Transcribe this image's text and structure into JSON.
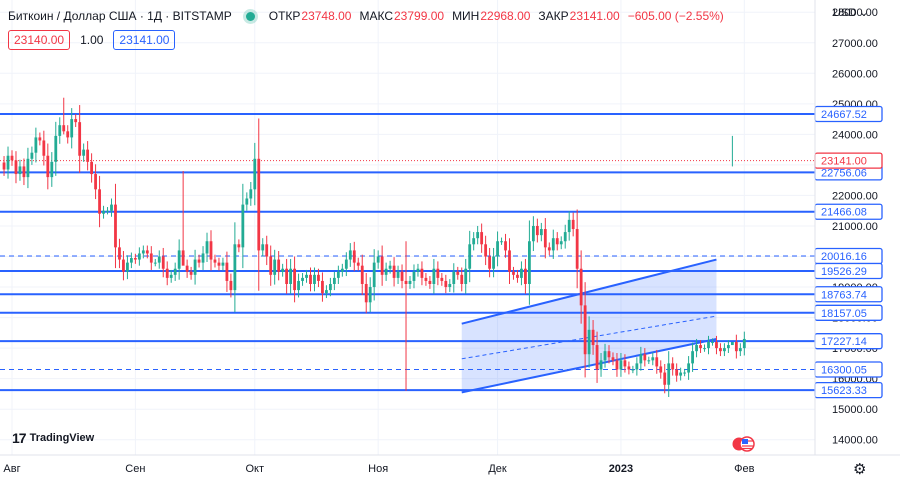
{
  "header": {
    "symbol": "Биткоин / Доллар США · 1Д · BITSTAMP",
    "open_label": "ОТКР",
    "open_value": "23748.00",
    "high_label": "МАКС",
    "high_value": "23799.00",
    "low_label": "МИН",
    "low_value": "22968.00",
    "close_label": "ЗАКР",
    "close_value": "23141.00",
    "change": "−605.00 (−2.55%)",
    "bid": "23140.00",
    "spread": "1.00",
    "ask": "23141.00"
  },
  "currency_label": "USD",
  "logo_text": "TradingView",
  "icons": {
    "status": "market-status-dot-icon",
    "logo": "tradingview-logo-icon",
    "flag": "us-flag-icon",
    "settings": "gear-icon",
    "dropdown": "chevron-down-icon"
  },
  "colors": {
    "up": "#22ab94",
    "down": "#f23645",
    "level_line": "#2962ff",
    "last_price": "#f23645",
    "channel_fill": "#2962ff"
  },
  "chart_data": {
    "type": "candlestick",
    "ylim": [
      13500,
      28400
    ],
    "y_ticks": [
      14000,
      15000,
      16000,
      17000,
      18000,
      19000,
      20000,
      21000,
      22000,
      23000,
      24000,
      25000,
      26000,
      27000,
      28000
    ],
    "x_labels": [
      {
        "label": "Авг",
        "date": "2022-08-01"
      },
      {
        "label": "Сен",
        "date": "2022-09-01"
      },
      {
        "label": "Окт",
        "date": "2022-10-01"
      },
      {
        "label": "Ноя",
        "date": "2022-11-01"
      },
      {
        "label": "Дек",
        "date": "2022-12-01"
      },
      {
        "label": "2023",
        "date": "2023-01-01"
      },
      {
        "label": "Фев",
        "date": "2023-02-01"
      }
    ],
    "xlim": [
      "2022-08-01",
      "2023-02-01"
    ],
    "last_price": 23141.0,
    "horizontal_levels": [
      {
        "value": 24667.52,
        "label": "24667.52",
        "style": "solid"
      },
      {
        "value": 22756.06,
        "label": "22756.06",
        "style": "solid"
      },
      {
        "value": 21466.08,
        "label": "21466.08",
        "style": "solid"
      },
      {
        "value": 20016.16,
        "label": "20016.16",
        "style": "dashed"
      },
      {
        "value": 19526.29,
        "label": "19526.29",
        "style": "solid"
      },
      {
        "value": 18763.74,
        "label": "18763.74",
        "style": "solid"
      },
      {
        "value": 18157.05,
        "label": "18157.05",
        "style": "solid"
      },
      {
        "value": 17227.14,
        "label": "17227.14",
        "style": "solid"
      },
      {
        "value": 16300.05,
        "label": "16300.05",
        "style": "dashed"
      },
      {
        "value": 15623.33,
        "label": "15623.33",
        "style": "solid"
      }
    ],
    "channel": {
      "start": "2022-11-22",
      "end": "2023-01-25",
      "upper": [
        17800,
        19900
      ],
      "lower": [
        15550,
        17300
      ],
      "mid_dashed": [
        16650,
        18050
      ]
    },
    "candles_close": [
      22850,
      23300,
      23150,
      22700,
      22950,
      22600,
      23200,
      23400,
      23900,
      23800,
      23300,
      22600,
      23100,
      23950,
      24300,
      24100,
      23900,
      24500,
      24400,
      23300,
      23500,
      23100,
      22700,
      22200,
      21400,
      21500,
      21500,
      21700,
      20300,
      19900,
      19500,
      19800,
      19950,
      19900,
      20100,
      20200,
      20100,
      19800,
      19800,
      20000,
      19600,
      19300,
      19400,
      19600,
      20200,
      19700,
      19500,
      19400,
      19900,
      19800,
      20100,
      20500,
      19900,
      19800,
      19700,
      19800,
      19200,
      18900,
      20400,
      20300,
      21700,
      21900,
      22200,
      23200,
      20200,
      20400,
      20000,
      19400,
      19900,
      19500,
      19600,
      19100,
      19600,
      18900,
      19200,
      19300,
      19400,
      19100,
      19400,
      19200,
      18800,
      18900,
      19100,
      19300,
      19500,
      19600,
      19900,
      20200,
      19800,
      19700,
      19100,
      18500,
      19000,
      19800,
      20000,
      19400,
      19600,
      19700,
      19300,
      19500,
      19200,
      19100,
      19200,
      19500,
      19600,
      19300,
      19200,
      19100,
      19600,
      19300,
      19200,
      19000,
      19100,
      19500,
      19400,
      19100,
      19600,
      20400,
      20600,
      20800,
      20400,
      20000,
      19600,
      20000,
      20500,
      20500,
      20200,
      19500,
      19400,
      19300,
      19600,
      19100,
      20500,
      21000,
      20700,
      20900,
      20300,
      20200,
      20600,
      20400,
      20500,
      20800,
      21200,
      20900,
      19600,
      18400,
      16800,
      17600,
      17100,
      16300,
      16600,
      16900,
      16700,
      16600,
      16300,
      16600,
      16400,
      16300,
      16300,
      16500,
      16800,
      16600,
      16600,
      16700,
      16400,
      16200,
      15800,
      16500,
      16300,
      16100,
      16200,
      16200,
      16500,
      16900,
      17100,
      17000,
      17000,
      17200,
      17200,
      17000,
      16900,
      17000,
      17100,
      17200,
      16900,
      17000,
      17300,
      17200,
      17800,
      17400,
      16800,
      16800,
      16500,
      16800,
      16800,
      16700,
      16900,
      16900,
      16800,
      16800,
      16700,
      16800,
      16600,
      16500,
      16600,
      16600,
      16700,
      16700,
      16800,
      16800,
      16900,
      17000,
      17100,
      17200,
      17400,
      17900,
      18200,
      19000,
      20100,
      20900,
      20900,
      21100,
      21100,
      20700,
      21200,
      20900,
      22600,
      22700,
      23000,
      22800,
      22600,
      23000,
      23100,
      23000,
      23300,
      23700,
      23200,
      23100,
      23700,
      23141
    ],
    "wick_spans": [
      {
        "date": "2022-08-14",
        "high": 25200,
        "low": 24000
      },
      {
        "date": "2022-09-13",
        "high": 22800,
        "low": 20000
      },
      {
        "date": "2022-11-08",
        "high": 20500,
        "low": 15600
      },
      {
        "date": "2023-01-29",
        "high": 23950,
        "low": 22950
      }
    ]
  }
}
